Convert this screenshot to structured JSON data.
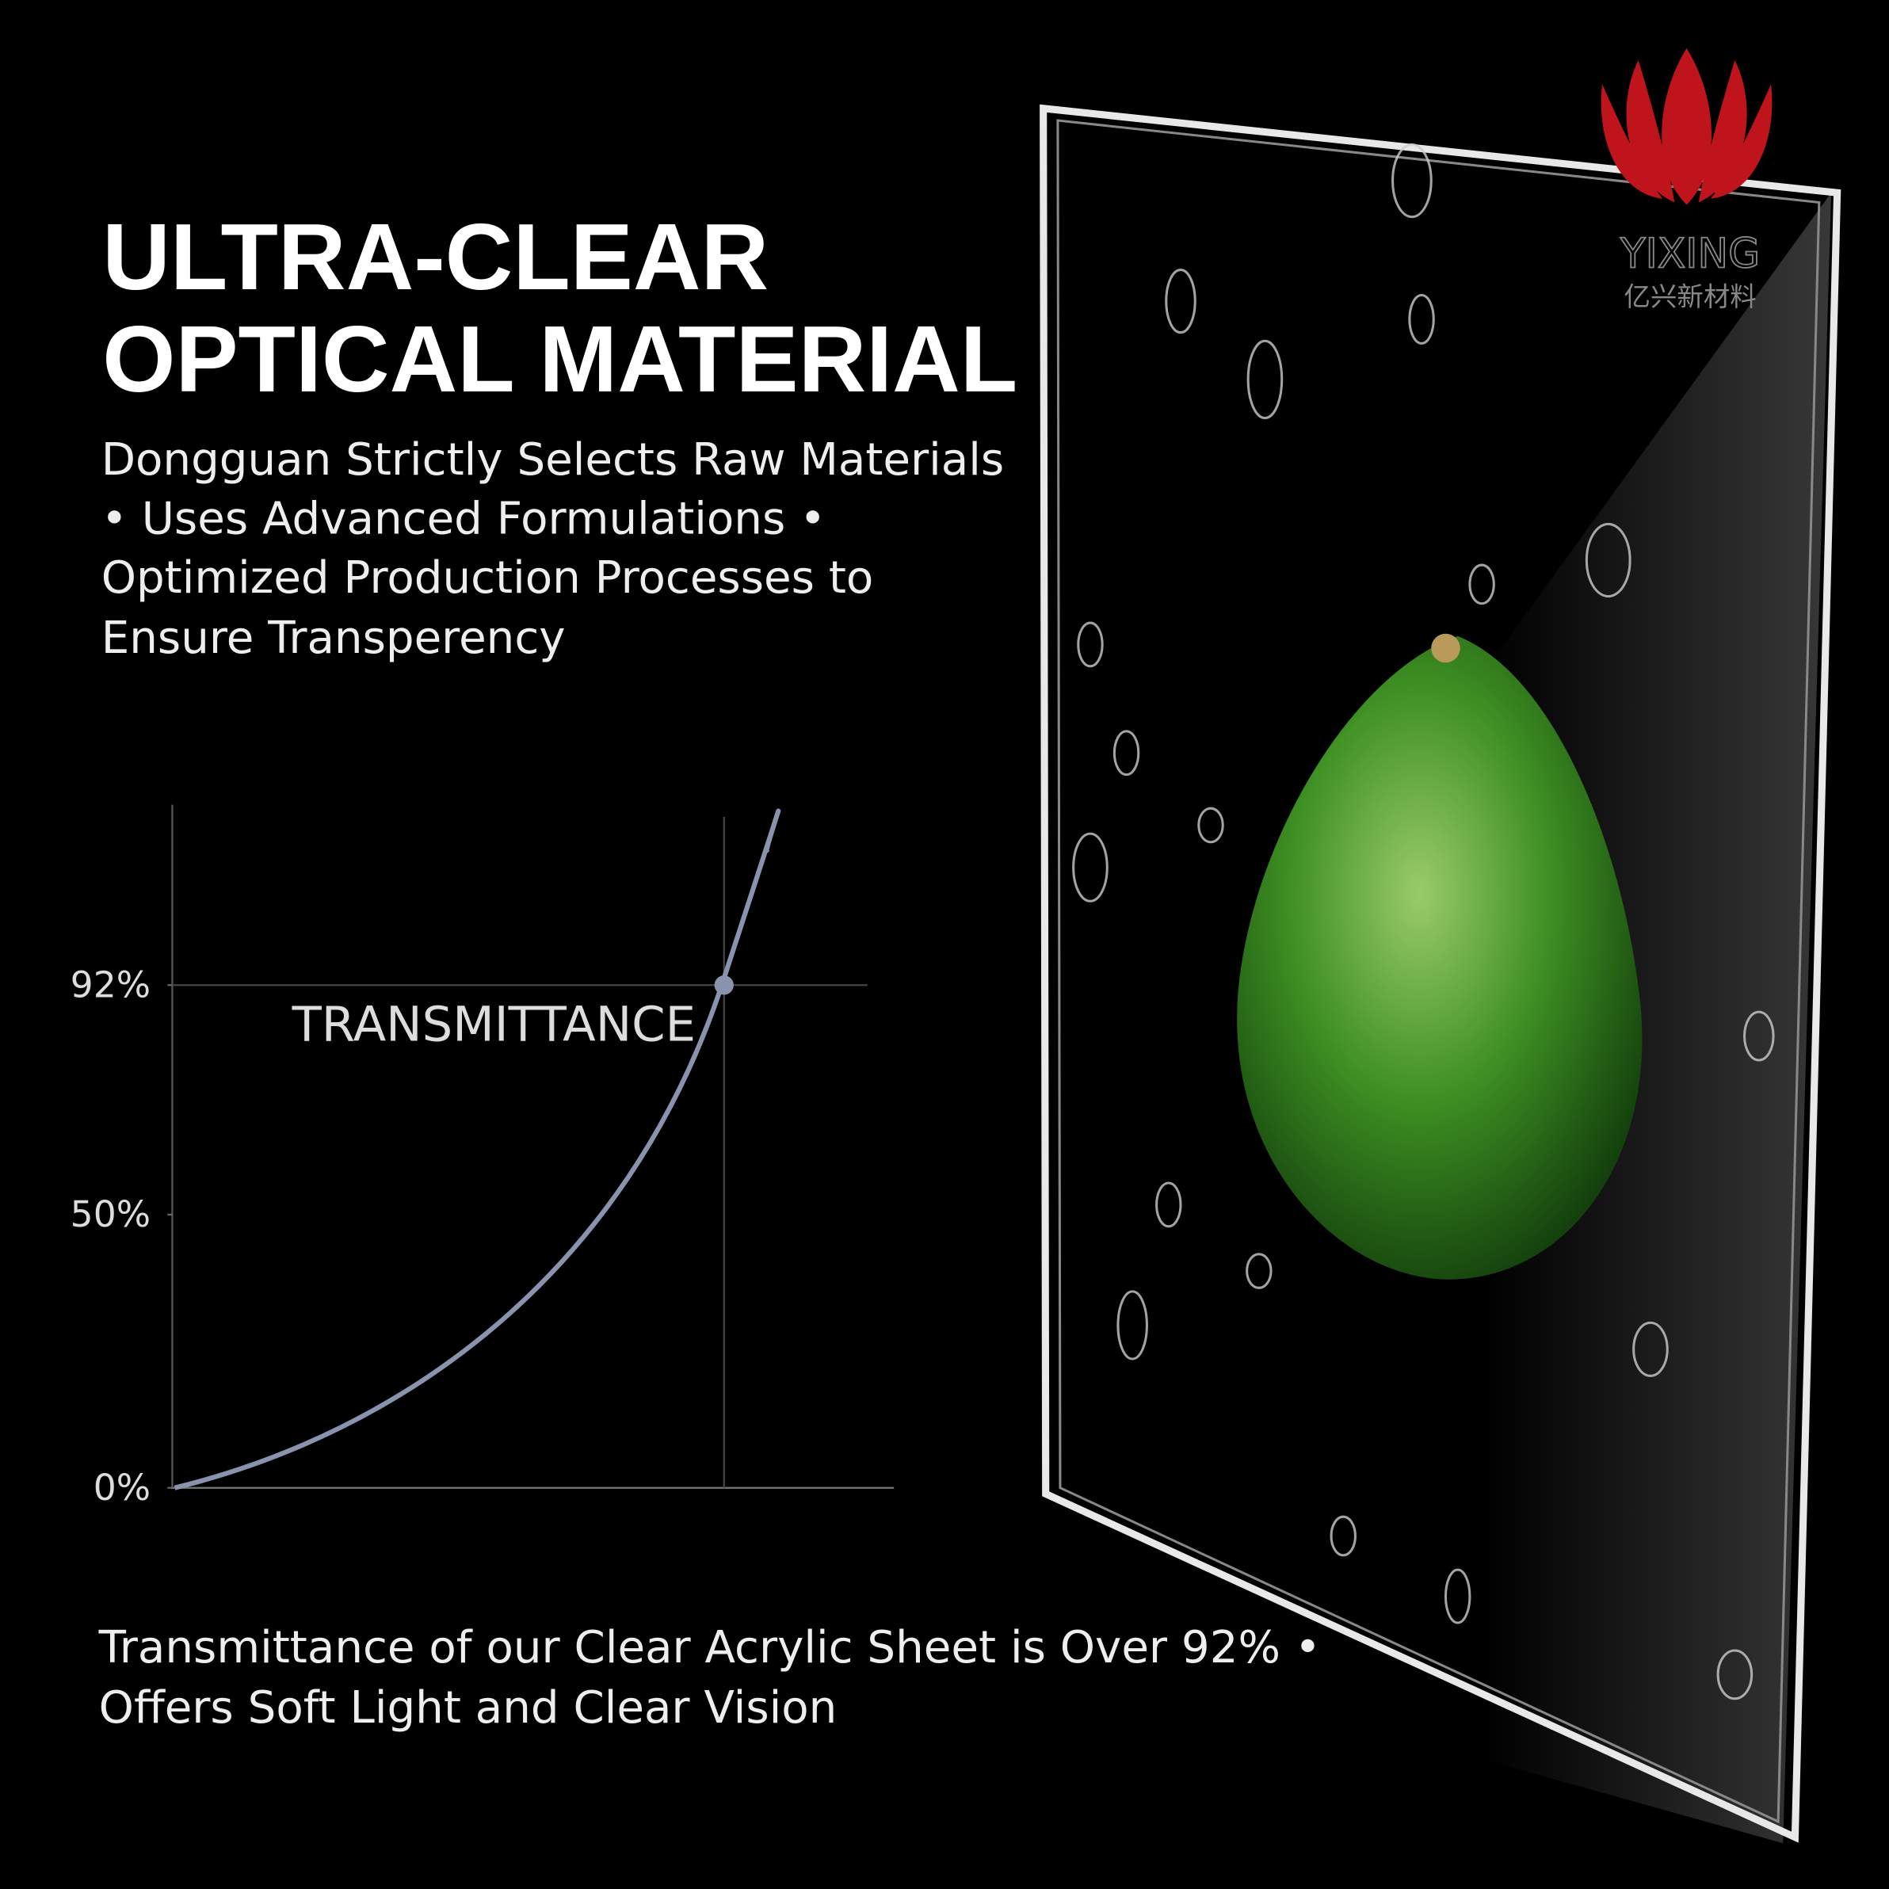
{
  "headline": [
    "ULTRA-CLEAR",
    "OPTICAL MATERIAL"
  ],
  "description": [
    "Dongguan Strictly Selects Raw Materials",
    "• Uses Advanced Formulations •",
    "Optimized Production Processes to",
    "Ensure Transperency"
  ],
  "chart_data": {
    "type": "line",
    "label": "TRANSMITTANCE",
    "ylim": [
      0,
      125
    ],
    "yticks": [
      {
        "value": 0,
        "label": "0%"
      },
      {
        "value": 50,
        "label": "50%"
      },
      {
        "value": 92,
        "label": "92%"
      }
    ],
    "highlight": 92,
    "color": "#8a93ad",
    "grid": false
  },
  "footer": [
    "Transmittance of our Clear Acrylic Sheet is Over 92% •",
    "Offers Soft Light and Clear Vision"
  ],
  "logo": {
    "brand": "YIXING",
    "subtitle": "亿兴新材料"
  }
}
